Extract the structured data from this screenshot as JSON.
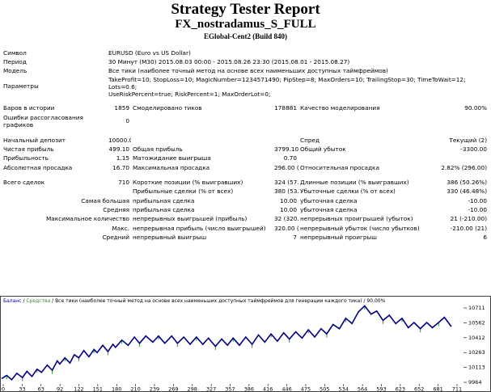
{
  "title": "Strategy Tester Report",
  "expert": "FX_nostradamus_S_FULL",
  "broker": "EGlobal-Cent2 (Build 840)",
  "rows": {
    "symbol": {
      "label": "Символ",
      "value": "EURUSD (Euro vs US Dollar)"
    },
    "period": {
      "label": "Период",
      "value": "30 Минут (M30) 2015.08.03 00:00 - 2015.08.26 23:30 (2015.08.01 - 2015.08.27)"
    },
    "model": {
      "label": "Модель",
      "value": "Все тики (наиболее точный метод на основе всех наименьших доступных таймфреймов)"
    },
    "params": {
      "label": "Параметры",
      "value1": "TakeProfit=10; StopLoss=10; MagicNumber=1234571490; PipStep=8; MaxOrders=10; TrailingStop=30; TimeToWait=12; Lots=0.6;",
      "value2": "UseRiskPercent=true; RiskPercent=1; MaxOrderLot=0;"
    },
    "bars": {
      "label": "Баров в истории",
      "value": "1859",
      "label2": "Смоделировано тиков",
      "value2": "178881",
      "label3": "Качество моделирования",
      "value3": "90.00%"
    },
    "errors": {
      "label": "Ошибки рассогласования графиков",
      "value": "0"
    },
    "deposit": {
      "label": "Начальный депозит",
      "value": "10000.00",
      "label3": "Спред",
      "value3": "Текущий (2)"
    },
    "net": {
      "label": "Чистая прибыль",
      "value": "499.10",
      "label2": "Общая прибыль",
      "value2": "3799.10",
      "label3": "Общий убыток",
      "value3": "-3300.00"
    },
    "pf": {
      "label": "Прибыльность",
      "value": "1.15",
      "label2": "Матожидание выигрыша",
      "value2": "0.70"
    },
    "dd": {
      "label": "Абсолютная просадка",
      "value": "16.70",
      "label2": "Максимальная просадка",
      "value2": "296.00 (2.82%)",
      "label3": "Относительная просадка",
      "value3": "2.82% (296.00)"
    },
    "trades": {
      "label": "Всего сделок",
      "value": "710",
      "label2": "Короткие позиции (% выигравших)",
      "value2": "324 (57.41%)",
      "label3": "Длинные позиции (% выигравших)",
      "value3": "386 (50.26%)"
    },
    "profit_trades": {
      "label2": "Прибыльные сделки (% от всех)",
      "value2": "380 (53.52%)",
      "label3": "Убыточные сделки (% от всех)",
      "value3": "330 (46.48%)"
    },
    "largest": {
      "label": "Самая большая",
      "label2": "прибыльная сделка",
      "value2": "10.00",
      "label3": "убыточная сделка",
      "value3": "-10.00"
    },
    "average": {
      "label": "Средняя",
      "label2": "прибыльная сделка",
      "value2": "10.00",
      "label3": "убыточная сделка",
      "value3": "-10.00"
    },
    "maxcount": {
      "label": "Максимальное количество",
      "label2": "непрерывных выигрышей (прибыль)",
      "value2": "32 (320.00)",
      "label3": "непрерывных проигрышей (убыток)",
      "value3": "21 (-210.00)"
    },
    "maxamount": {
      "label": "Макс.",
      "label2": "непрерывная прибыль (число выигрышей)",
      "value2": "320.00 (32)",
      "label3": "непрерывный убыток (число убытков)",
      "value3": "-210.00 (21)"
    },
    "avgcons": {
      "label": "Средний",
      "label2": "непрерывный выигрыш",
      "value2": "7",
      "label3": "непрерывный проигрыш",
      "value3": "6"
    }
  },
  "chart_data": {
    "type": "line",
    "legend": "Баланс / Средства / Все тики (наиболее точный метод на основе всех наименьших доступных таймфреймов для генерации каждого тика) / 90.00%",
    "legend_parts": {
      "balance": "Баланс",
      "slash1": " / ",
      "equity": "Средства",
      "rest": " / Все тики (наиболее точный метод на основе всех наименьших доступных таймфреймов для генерации каждого тика) / 90.00%"
    },
    "x_ticks": [
      "0",
      "33",
      "63",
      "92",
      "122",
      "151",
      "180",
      "210",
      "239",
      "269",
      "298",
      "327",
      "357",
      "386",
      "416",
      "446",
      "475",
      "505",
      "534",
      "564",
      "593",
      "623",
      "652",
      "681",
      "711"
    ],
    "y_ticks": [
      "10711",
      "10562",
      "10412",
      "10263",
      "10113",
      "9964"
    ],
    "ylim": [
      9964,
      10711
    ],
    "xlim": [
      0,
      720
    ],
    "series": [
      {
        "name": "Баланс",
        "color": "#000080",
        "points": [
          [
            0,
            10000
          ],
          [
            8,
            10030
          ],
          [
            16,
            9990
          ],
          [
            24,
            10050
          ],
          [
            33,
            10010
          ],
          [
            40,
            10070
          ],
          [
            48,
            10020
          ],
          [
            56,
            10090
          ],
          [
            63,
            10060
          ],
          [
            72,
            10130
          ],
          [
            80,
            10080
          ],
          [
            88,
            10170
          ],
          [
            92,
            10140
          ],
          [
            100,
            10200
          ],
          [
            108,
            10150
          ],
          [
            115,
            10230
          ],
          [
            122,
            10200
          ],
          [
            130,
            10270
          ],
          [
            138,
            10210
          ],
          [
            146,
            10280
          ],
          [
            151,
            10250
          ],
          [
            160,
            10320
          ],
          [
            168,
            10260
          ],
          [
            176,
            10330
          ],
          [
            180,
            10300
          ],
          [
            190,
            10370
          ],
          [
            200,
            10320
          ],
          [
            210,
            10400
          ],
          [
            218,
            10340
          ],
          [
            228,
            10410
          ],
          [
            239,
            10350
          ],
          [
            248,
            10410
          ],
          [
            258,
            10340
          ],
          [
            269,
            10410
          ],
          [
            278,
            10340
          ],
          [
            288,
            10400
          ],
          [
            298,
            10330
          ],
          [
            308,
            10400
          ],
          [
            318,
            10330
          ],
          [
            327,
            10390
          ],
          [
            338,
            10310
          ],
          [
            348,
            10380
          ],
          [
            357,
            10320
          ],
          [
            366,
            10390
          ],
          [
            376,
            10320
          ],
          [
            386,
            10400
          ],
          [
            396,
            10330
          ],
          [
            406,
            10420
          ],
          [
            416,
            10350
          ],
          [
            426,
            10430
          ],
          [
            436,
            10360
          ],
          [
            446,
            10440
          ],
          [
            455,
            10380
          ],
          [
            465,
            10450
          ],
          [
            475,
            10390
          ],
          [
            485,
            10470
          ],
          [
            495,
            10400
          ],
          [
            505,
            10480
          ],
          [
            514,
            10430
          ],
          [
            524,
            10520
          ],
          [
            534,
            10480
          ],
          [
            544,
            10580
          ],
          [
            554,
            10530
          ],
          [
            564,
            10640
          ],
          [
            574,
            10700
          ],
          [
            584,
            10620
          ],
          [
            593,
            10650
          ],
          [
            603,
            10560
          ],
          [
            613,
            10610
          ],
          [
            623,
            10530
          ],
          [
            633,
            10580
          ],
          [
            643,
            10490
          ],
          [
            652,
            10540
          ],
          [
            662,
            10480
          ],
          [
            672,
            10540
          ],
          [
            681,
            10490
          ],
          [
            691,
            10540
          ],
          [
            700,
            10590
          ],
          [
            711,
            10500
          ]
        ]
      }
    ],
    "equity_color": "#20a020",
    "grid": false
  }
}
